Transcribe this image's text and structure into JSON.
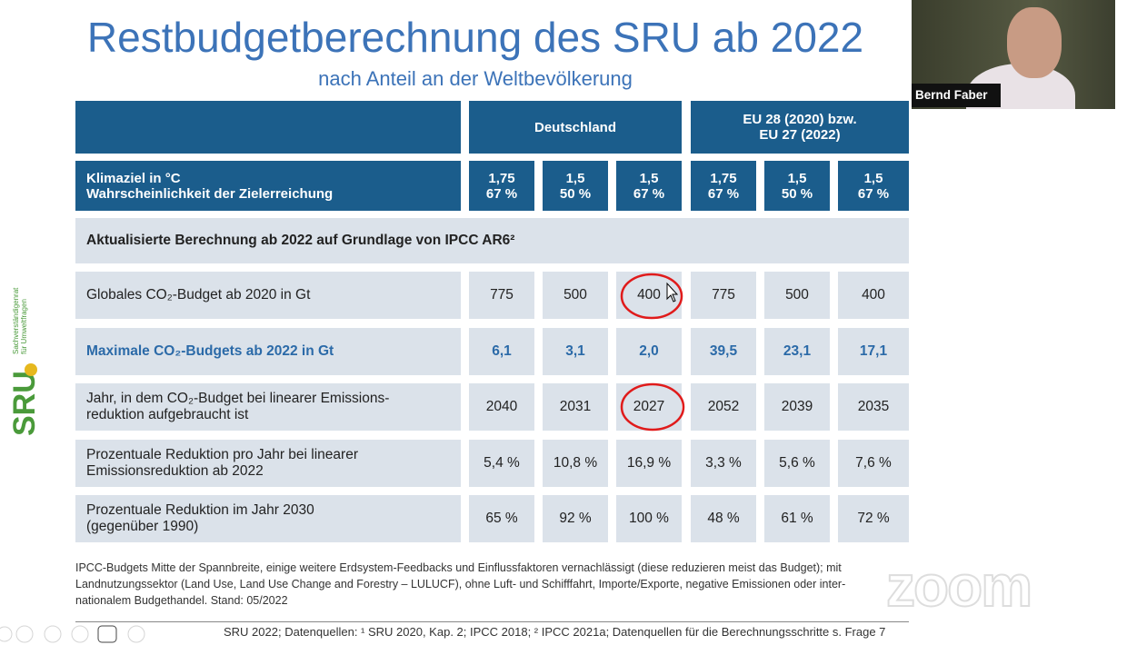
{
  "header": {
    "title": "Restbudgetberechnung des SRU ab 2022",
    "subtitle": "nach Anteil an der Weltbevölkerung"
  },
  "table": {
    "groups": [
      [
        "Deutschland"
      ],
      [
        "EU 28 (2020) bzw.",
        "EU 27 (2022)"
      ]
    ],
    "target_label": [
      "Klimaziel in °C",
      "Wahrscheinlichkeit der Zielerreichung"
    ],
    "targets": [
      [
        "1,75",
        "67 %"
      ],
      [
        "1,5",
        "50 %"
      ],
      [
        "1,5",
        "67 %"
      ],
      [
        "1,75",
        "67 %"
      ],
      [
        "1,5",
        "50 %"
      ],
      [
        "1,5",
        "67 %"
      ]
    ],
    "section": "Aktualisierte Berechnung ab 2022 auf Grundlage von IPCC AR6²",
    "rows": [
      {
        "label": [
          "Globales CO₂-Budget ab 2020 in Gt"
        ],
        "values": [
          "775",
          "500",
          "400",
          "775",
          "500",
          "400"
        ]
      },
      {
        "label": [
          "Maximale CO₂-Budgets ab 2022 in Gt"
        ],
        "values": [
          "6,1",
          "3,1",
          "2,0",
          "39,5",
          "23,1",
          "17,1"
        ]
      },
      {
        "label": [
          "Jahr, in dem CO₂-Budget bei linearer Emissions-",
          "reduktion aufgebraucht ist"
        ],
        "values": [
          "2040",
          "2031",
          "2027",
          "2052",
          "2039",
          "2035"
        ]
      },
      {
        "label": [
          "Prozentuale Reduktion pro Jahr bei linearer",
          "Emissionsreduktion ab 2022"
        ],
        "values": [
          "5,4 %",
          "10,8 %",
          "16,9 %",
          "3,3 %",
          "5,6 %",
          "7,6 %"
        ]
      },
      {
        "label": [
          "Prozentuale Reduktion im Jahr 2030",
          "(gegenüber 1990)"
        ],
        "values": [
          "65 %",
          "92 %",
          "100 %",
          "48 %",
          "61 %",
          "72 %"
        ]
      }
    ]
  },
  "footnote": [
    "IPCC-Budgets Mitte der Spannbreite, einige weitere Erdsystem-Feedbacks und Einflussfaktoren vernachlässigt (diese reduzieren meist das Budget); mit",
    "Landnutzungssektor (Land Use, Land Use Change and Forestry – LULUCF), ohne Luft- und Schifffahrt, Importe/Exporte, negative Emissionen oder inter-",
    "nationalem Budgethandel. Stand: 05/2022"
  ],
  "source": "SRU 2022; Datenquellen: ¹ SRU 2020, Kap. 2; IPCC 2018; ² IPCC 2021a; Datenquellen für die Berechnungsschritte s. Frage 7",
  "logo": {
    "name": "SRU",
    "caption": [
      "Sachverständigenrat",
      "für Umweltfragen"
    ]
  },
  "webcam": {
    "name": "Bernd Faber"
  },
  "watermark": "zoom"
}
